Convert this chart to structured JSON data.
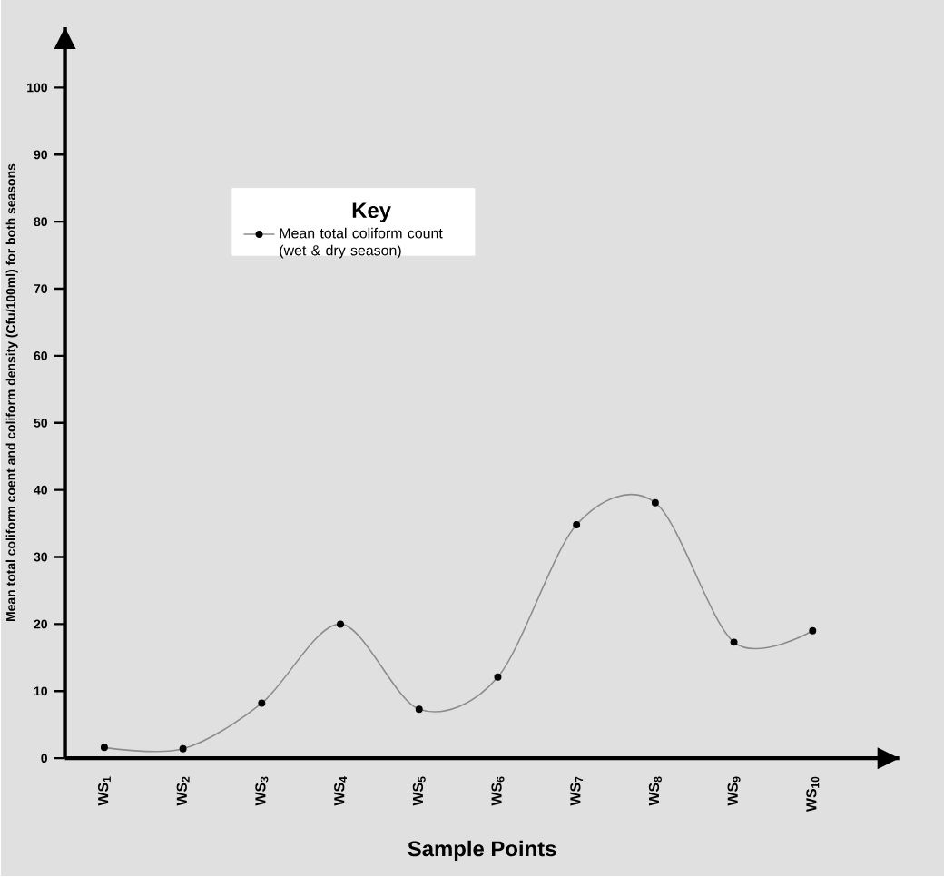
{
  "chart_data": {
    "type": "line",
    "xlabel": "Sample Points",
    "ylabel": "Mean total coliform coent and coliform density (Cfu/100ml) for both seasons",
    "legend_title": "Key",
    "categories": [
      "WS$_{1}$",
      "WS$_{2}$",
      "WS$_{3}$",
      "WS$_{4}$",
      "WS$_{5}$",
      "WS$_{6}$",
      "WS$_{7}$",
      "WS$_{8}$",
      "WS$_{9}$",
      "WS$_{10}$"
    ],
    "series": [
      {
        "name": "Mean total coliform count (wet & dry season)",
        "color": "#000000",
        "values": [
          1.6,
          1.4,
          8.2,
          20,
          7.3,
          12.1,
          34.8,
          38.1,
          17.3,
          19
        ]
      }
    ],
    "ylim": [
      0,
      109
    ],
    "yticks": [
      0,
      10,
      20,
      30,
      40,
      50,
      60,
      70,
      80,
      90,
      100
    ],
    "legend": "top",
    "marker": "circle",
    "line_style": "solid",
    "grid": false
  }
}
